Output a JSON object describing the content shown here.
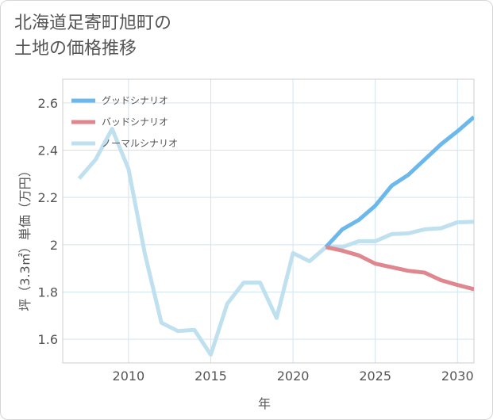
{
  "title": "北海道足寄町旭町の\n土地の価格推移",
  "chart_data": {
    "type": "line",
    "xlabel": "年",
    "ylabel": "坪（3.3㎡）単価（万円）",
    "xlim": [
      2006,
      2031
    ],
    "ylim": [
      1.5,
      2.7
    ],
    "xticks": [
      2010,
      2015,
      2020,
      2025,
      2030
    ],
    "yticks": [
      1.6,
      1.8,
      2.0,
      2.2,
      2.4,
      2.6
    ],
    "ytick_labels": [
      "1.6",
      "1.8",
      "2",
      "2.2",
      "2.4",
      "2.6"
    ],
    "grid": true,
    "legend_position": "top-left",
    "series": [
      {
        "name": "グッドシナリオ",
        "color": "#6bb8ec",
        "x": [
          2022,
          2023,
          2024,
          2025,
          2026,
          2027,
          2028,
          2029,
          2030,
          2031
        ],
        "y": [
          1.99,
          2.065,
          2.105,
          2.165,
          2.25,
          2.295,
          2.36,
          2.425,
          2.48,
          2.54
        ]
      },
      {
        "name": "バッドシナリオ",
        "color": "#e0868f",
        "x": [
          2022,
          2023,
          2024,
          2025,
          2026,
          2027,
          2028,
          2029,
          2030,
          2031
        ],
        "y": [
          1.99,
          1.975,
          1.955,
          1.92,
          1.905,
          1.89,
          1.882,
          1.85,
          1.83,
          1.812
        ]
      },
      {
        "name": "ノーマルシナリオ",
        "color": "#bfe0ee",
        "x": [
          2007,
          2008,
          2009,
          2010,
          2011,
          2012,
          2013,
          2014,
          2015,
          2016,
          2017,
          2018,
          2019,
          2020,
          2021,
          2022,
          2023,
          2024,
          2025,
          2026,
          2027,
          2028,
          2029,
          2030,
          2031
        ],
        "y": [
          2.28,
          2.36,
          2.49,
          2.32,
          1.96,
          1.67,
          1.635,
          1.64,
          1.535,
          1.75,
          1.84,
          1.84,
          1.69,
          1.965,
          1.93,
          1.99,
          1.99,
          2.015,
          2.015,
          2.045,
          2.048,
          2.065,
          2.07,
          2.095,
          2.097
        ]
      }
    ]
  }
}
